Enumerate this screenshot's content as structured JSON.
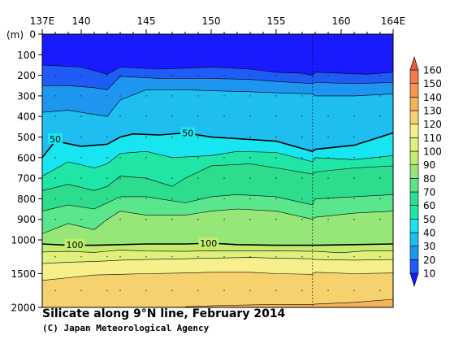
{
  "chart_data": {
    "type": "contour",
    "title": "Silicate along 9°N line, February 2014",
    "credit": "(C) Japan Meteorological Agency",
    "x_axis": {
      "range": [
        137,
        164
      ],
      "ticks": [
        137,
        140,
        145,
        150,
        155,
        160,
        164
      ],
      "tick_labels": [
        "137E",
        "140",
        "145",
        "150",
        "155",
        "160",
        "164E"
      ],
      "position": "top"
    },
    "y_axis": {
      "unit_label": "(m)",
      "ticks": [
        0,
        100,
        200,
        300,
        400,
        500,
        600,
        700,
        800,
        900,
        1000,
        1500,
        2000
      ],
      "tick_labels": [
        "0",
        "100",
        "200",
        "300",
        "400",
        "500",
        "600",
        "700",
        "800",
        "900",
        "1000",
        "1500",
        "2000"
      ],
      "scale": "piecewise: linear 0-1000, compressed 1000-2000",
      "reversed": true
    },
    "colorbar": {
      "levels": [
        10,
        20,
        30,
        40,
        50,
        60,
        70,
        80,
        90,
        100,
        110,
        120,
        130,
        140,
        150,
        160
      ],
      "labels": [
        "10",
        "20",
        "30",
        "40",
        "50",
        "60",
        "70",
        "80",
        "90",
        "100",
        "110",
        "120",
        "130",
        "140",
        "150",
        "160"
      ],
      "colors": [
        "#1a1aff",
        "#1e5cf5",
        "#1e96f0",
        "#1ebef0",
        "#17e6f0",
        "#20e6a5",
        "#2ddc8c",
        "#5ae68c",
        "#96e678",
        "#c3eb6e",
        "#e1f07d",
        "#f5f08c",
        "#f5d26e",
        "#f5b45a",
        "#f59650",
        "#f57850",
        "#ee5a3c"
      ]
    },
    "contour_labels": [
      {
        "value": "50",
        "lon": 138.0,
        "depth": 510
      },
      {
        "value": "50",
        "lon": 148.2,
        "depth": 480
      },
      {
        "value": "100",
        "lon": 139.5,
        "depth": 1070
      },
      {
        "value": "100",
        "lon": 149.8,
        "depth": 1050
      }
    ],
    "isolines": [
      {
        "level": 20,
        "points": [
          [
            137,
            150
          ],
          [
            140,
            160
          ],
          [
            142,
            195
          ],
          [
            143,
            160
          ],
          [
            146,
            170
          ],
          [
            150,
            160
          ],
          [
            153,
            170
          ],
          [
            155,
            185
          ],
          [
            157,
            190
          ],
          [
            157.8,
            200
          ],
          [
            158,
            185
          ],
          [
            160,
            190
          ],
          [
            162,
            195
          ],
          [
            164,
            185
          ]
        ]
      },
      {
        "level": 30,
        "points": [
          [
            137,
            250
          ],
          [
            139,
            250
          ],
          [
            141,
            260
          ],
          [
            142,
            270
          ],
          [
            143,
            205
          ],
          [
            146,
            215
          ],
          [
            150,
            215
          ],
          [
            153,
            220
          ],
          [
            155,
            230
          ],
          [
            157.8,
            240
          ],
          [
            158,
            235
          ],
          [
            161,
            240
          ],
          [
            164,
            235
          ]
        ]
      },
      {
        "level": 40,
        "points": [
          [
            137,
            380
          ],
          [
            139,
            370
          ],
          [
            141,
            390
          ],
          [
            142,
            400
          ],
          [
            143,
            320
          ],
          [
            145,
            270
          ],
          [
            148,
            270
          ],
          [
            150,
            275
          ],
          [
            153,
            280
          ],
          [
            155,
            285
          ],
          [
            157.8,
            290
          ],
          [
            158,
            300
          ],
          [
            161,
            300
          ],
          [
            164,
            290
          ]
        ]
      },
      {
        "level": 50,
        "points": [
          [
            137,
            600
          ],
          [
            138,
            520
          ],
          [
            140,
            545
          ],
          [
            142,
            535
          ],
          [
            143,
            500
          ],
          [
            144,
            485
          ],
          [
            146,
            490
          ],
          [
            148,
            480
          ],
          [
            150,
            500
          ],
          [
            155,
            520
          ],
          [
            157.8,
            570
          ],
          [
            158,
            560
          ],
          [
            161,
            540
          ],
          [
            164,
            480
          ]
        ]
      },
      {
        "level": 60,
        "points": [
          [
            137,
            690
          ],
          [
            139,
            620
          ],
          [
            141,
            650
          ],
          [
            142,
            630
          ],
          [
            143,
            580
          ],
          [
            145,
            570
          ],
          [
            147,
            600
          ],
          [
            150,
            590
          ],
          [
            152,
            570
          ],
          [
            155,
            575
          ],
          [
            157.8,
            620
          ],
          [
            158,
            600
          ],
          [
            161,
            610
          ],
          [
            164,
            590
          ]
        ]
      },
      {
        "level": 70,
        "points": [
          [
            137,
            760
          ],
          [
            139,
            730
          ],
          [
            141,
            760
          ],
          [
            142,
            740
          ],
          [
            143,
            690
          ],
          [
            145,
            700
          ],
          [
            147,
            740
          ],
          [
            148,
            700
          ],
          [
            150,
            640
          ],
          [
            153,
            630
          ],
          [
            155,
            650
          ],
          [
            157.8,
            680
          ],
          [
            158,
            670
          ],
          [
            161,
            650
          ],
          [
            164,
            640
          ]
        ]
      },
      {
        "level": 80,
        "points": [
          [
            137,
            860
          ],
          [
            139,
            830
          ],
          [
            141,
            850
          ],
          [
            143,
            790
          ],
          [
            145,
            790
          ],
          [
            148,
            820
          ],
          [
            150,
            790
          ],
          [
            152,
            780
          ],
          [
            155,
            790
          ],
          [
            157.8,
            830
          ],
          [
            158,
            800
          ],
          [
            161,
            790
          ],
          [
            164,
            780
          ]
        ]
      },
      {
        "level": 90,
        "points": [
          [
            137,
            970
          ],
          [
            139,
            920
          ],
          [
            141,
            950
          ],
          [
            142,
            900
          ],
          [
            143,
            860
          ],
          [
            145,
            880
          ],
          [
            148,
            880
          ],
          [
            150,
            860
          ],
          [
            152,
            850
          ],
          [
            155,
            860
          ],
          [
            157.8,
            900
          ],
          [
            158,
            890
          ],
          [
            161,
            870
          ],
          [
            164,
            860
          ]
        ]
      },
      {
        "level": 100,
        "points": [
          [
            137,
            1060
          ],
          [
            139,
            1080
          ],
          [
            141,
            1080
          ],
          [
            143,
            1070
          ],
          [
            145,
            1060
          ],
          [
            148,
            1060
          ],
          [
            150,
            1050
          ],
          [
            152,
            1070
          ],
          [
            155,
            1080
          ],
          [
            157.8,
            1080
          ],
          [
            158,
            1080
          ],
          [
            161,
            1070
          ],
          [
            164,
            1060
          ]
        ]
      },
      {
        "level": 110,
        "points": [
          [
            137,
            1180
          ],
          [
            139,
            1170
          ],
          [
            141,
            1185
          ],
          [
            143,
            1150
          ],
          [
            145,
            1165
          ],
          [
            148,
            1170
          ],
          [
            150,
            1160
          ],
          [
            152,
            1165
          ],
          [
            155,
            1160
          ],
          [
            157.8,
            1170
          ],
          [
            158,
            1170
          ],
          [
            160,
            1190
          ],
          [
            162,
            1160
          ],
          [
            164,
            1160
          ]
        ]
      },
      {
        "level": 120,
        "points": [
          [
            137,
            1350
          ],
          [
            139,
            1330
          ],
          [
            141,
            1320
          ],
          [
            143,
            1300
          ],
          [
            145,
            1290
          ],
          [
            148,
            1280
          ],
          [
            150,
            1270
          ],
          [
            153,
            1260
          ],
          [
            155,
            1270
          ],
          [
            157.8,
            1280
          ],
          [
            158,
            1290
          ],
          [
            161,
            1300
          ],
          [
            164,
            1290
          ]
        ]
      },
      {
        "level": 130,
        "points": [
          [
            137,
            1600
          ],
          [
            139,
            1560
          ],
          [
            141,
            1520
          ],
          [
            143,
            1510
          ],
          [
            145,
            1500
          ],
          [
            148,
            1490
          ],
          [
            150,
            1480
          ],
          [
            153,
            1480
          ],
          [
            155,
            1500
          ],
          [
            157.8,
            1510
          ],
          [
            158,
            1480
          ],
          [
            161,
            1500
          ],
          [
            164,
            1490
          ]
        ]
      },
      {
        "level": 140,
        "points": [
          [
            148,
            1990
          ],
          [
            151,
            1970
          ],
          [
            154,
            1960
          ],
          [
            157.8,
            1955
          ],
          [
            158,
            1950
          ],
          [
            161,
            1925
          ],
          [
            164,
            1880
          ]
        ]
      }
    ],
    "grid": false,
    "legend": "right"
  }
}
